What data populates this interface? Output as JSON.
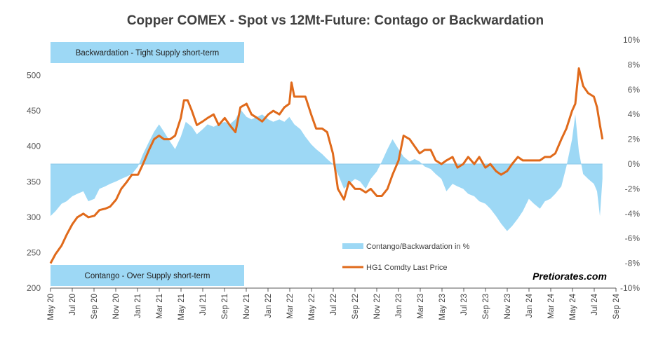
{
  "colors": {
    "area": "#9DD8F5",
    "line": "#E06A1B",
    "box": "#9DD8F5",
    "axis": "#595959",
    "zero_line": "#8CC8E8"
  },
  "annotations": {
    "backwardation": "Backwardation - Tight Supply short-term",
    "contango": "Contango - Over Supply short-term",
    "brand": "Pretiorates.com"
  },
  "chart_data": {
    "type": "line",
    "title": "Copper COMEX - Spot vs 12Mt-Future: Contago or Backwardation",
    "legend_placement": "bottom-center",
    "grid": false,
    "x_ticks": [
      "May 20",
      "Jul 20",
      "Sep 20",
      "Nov 20",
      "Jan 21",
      "Mar 21",
      "May 21",
      "Jul 21",
      "Sep 21",
      "Nov 21",
      "Jan 22",
      "Mar 22",
      "May 22",
      "Jul 22",
      "Sep 22",
      "Nov 22",
      "Jan 23",
      "Mar 23",
      "May 23",
      "Jul 23",
      "Sep 23",
      "Nov 23",
      "Jan 24",
      "Mar 24",
      "May 24",
      "Jul 24",
      "Sep 24"
    ],
    "y_left": {
      "ylim": [
        200,
        550
      ],
      "ticks": [
        "200",
        "250",
        "300",
        "350",
        "400",
        "450",
        "500"
      ]
    },
    "y_right": {
      "ylim": [
        -10,
        10
      ],
      "ticks": [
        "-10%",
        "-8%",
        "-6%",
        "-4%",
        "-2%",
        "0%",
        "2%",
        "4%",
        "6%",
        "8%",
        "10%"
      ]
    },
    "series": [
      {
        "name": "Contango/Backwardation in %",
        "type": "area",
        "axis": "right",
        "x": [
          "2020-05-01",
          "2020-05-15",
          "2020-06-01",
          "2020-06-15",
          "2020-07-01",
          "2020-07-15",
          "2020-08-01",
          "2020-08-15",
          "2020-09-01",
          "2020-09-15",
          "2020-10-01",
          "2020-10-15",
          "2020-11-01",
          "2020-11-15",
          "2020-12-01",
          "2020-12-15",
          "2021-01-01",
          "2021-01-15",
          "2021-02-01",
          "2021-02-15",
          "2021-03-01",
          "2021-03-15",
          "2021-04-01",
          "2021-04-15",
          "2021-05-01",
          "2021-05-15",
          "2021-06-01",
          "2021-06-15",
          "2021-07-01",
          "2021-07-15",
          "2021-08-01",
          "2021-08-15",
          "2021-09-01",
          "2021-09-15",
          "2021-10-01",
          "2021-10-15",
          "2021-11-01",
          "2021-11-15",
          "2021-12-01",
          "2021-12-15",
          "2022-01-01",
          "2022-01-15",
          "2022-02-01",
          "2022-02-15",
          "2022-03-01",
          "2022-03-15",
          "2022-04-01",
          "2022-04-15",
          "2022-05-01",
          "2022-05-15",
          "2022-06-01",
          "2022-06-15",
          "2022-07-01",
          "2022-07-15",
          "2022-08-01",
          "2022-08-15",
          "2022-09-01",
          "2022-09-15",
          "2022-10-01",
          "2022-10-15",
          "2022-11-01",
          "2022-11-15",
          "2022-12-01",
          "2022-12-15",
          "2023-01-01",
          "2023-01-15",
          "2023-02-01",
          "2023-02-15",
          "2023-03-01",
          "2023-03-15",
          "2023-04-01",
          "2023-04-15",
          "2023-05-01",
          "2023-05-15",
          "2023-06-01",
          "2023-06-15",
          "2023-07-01",
          "2023-07-15",
          "2023-08-01",
          "2023-08-15",
          "2023-09-01",
          "2023-09-15",
          "2023-10-01",
          "2023-10-15",
          "2023-11-01",
          "2023-11-15",
          "2023-12-01",
          "2023-12-15",
          "2024-01-01",
          "2024-01-15",
          "2024-02-01",
          "2024-02-15",
          "2024-03-01",
          "2024-03-15",
          "2024-04-01",
          "2024-04-15",
          "2024-05-01",
          "2024-05-10",
          "2024-05-20",
          "2024-06-01",
          "2024-06-15",
          "2024-07-01",
          "2024-07-10",
          "2024-07-18",
          "2024-07-25"
        ],
        "values": [
          -4.2,
          -3.8,
          -3.2,
          -3.0,
          -2.6,
          -2.4,
          -2.2,
          -3.0,
          -2.8,
          -2.0,
          -1.8,
          -1.6,
          -1.4,
          -1.2,
          -1.0,
          -0.8,
          -0.2,
          0.8,
          1.8,
          2.6,
          3.2,
          2.6,
          1.8,
          1.2,
          2.2,
          3.4,
          3.0,
          2.4,
          2.8,
          3.2,
          3.0,
          3.2,
          3.4,
          3.2,
          3.6,
          4.4,
          3.8,
          3.6,
          3.8,
          4.0,
          3.6,
          3.4,
          3.6,
          3.4,
          3.8,
          3.2,
          2.8,
          2.2,
          1.6,
          1.2,
          0.8,
          0.4,
          0.0,
          -0.8,
          -2.0,
          -1.6,
          -1.2,
          -1.4,
          -2.0,
          -1.2,
          -0.6,
          0.2,
          1.2,
          2.0,
          1.2,
          0.6,
          0.2,
          0.4,
          0.2,
          -0.2,
          -0.4,
          -0.8,
          -1.2,
          -2.2,
          -1.6,
          -1.8,
          -2.0,
          -2.4,
          -2.6,
          -3.0,
          -3.2,
          -3.6,
          -4.2,
          -4.8,
          -5.4,
          -5.0,
          -4.4,
          -3.8,
          -2.8,
          -3.2,
          -3.6,
          -3.0,
          -2.8,
          -2.4,
          -1.8,
          -0.2,
          2.0,
          4.0,
          1.0,
          -0.8,
          -1.2,
          -1.6,
          -2.2,
          -4.2,
          -1.2
        ]
      },
      {
        "name": "HG1 Comdty Last Price",
        "type": "line",
        "axis": "left",
        "x": [
          "2020-05-01",
          "2020-05-15",
          "2020-06-01",
          "2020-06-15",
          "2020-07-01",
          "2020-07-15",
          "2020-08-01",
          "2020-08-15",
          "2020-09-01",
          "2020-09-15",
          "2020-10-01",
          "2020-10-15",
          "2020-11-01",
          "2020-11-15",
          "2020-12-01",
          "2020-12-15",
          "2021-01-01",
          "2021-01-15",
          "2021-02-01",
          "2021-02-15",
          "2021-03-01",
          "2021-03-15",
          "2021-04-01",
          "2021-04-15",
          "2021-05-01",
          "2021-05-10",
          "2021-05-20",
          "2021-06-01",
          "2021-06-15",
          "2021-07-01",
          "2021-07-15",
          "2021-08-01",
          "2021-08-15",
          "2021-09-01",
          "2021-09-15",
          "2021-10-01",
          "2021-10-15",
          "2021-11-01",
          "2021-11-15",
          "2021-12-01",
          "2021-12-15",
          "2022-01-01",
          "2022-01-15",
          "2022-02-01",
          "2022-02-15",
          "2022-03-01",
          "2022-03-07",
          "2022-03-15",
          "2022-04-01",
          "2022-04-15",
          "2022-05-01",
          "2022-05-15",
          "2022-06-01",
          "2022-06-15",
          "2022-07-01",
          "2022-07-15",
          "2022-08-01",
          "2022-08-15",
          "2022-09-01",
          "2022-09-15",
          "2022-10-01",
          "2022-10-15",
          "2022-11-01",
          "2022-11-15",
          "2022-12-01",
          "2022-12-15",
          "2023-01-01",
          "2023-01-15",
          "2023-02-01",
          "2023-02-15",
          "2023-03-01",
          "2023-03-15",
          "2023-04-01",
          "2023-04-15",
          "2023-05-01",
          "2023-05-15",
          "2023-06-01",
          "2023-06-15",
          "2023-07-01",
          "2023-07-15",
          "2023-08-01",
          "2023-08-15",
          "2023-09-01",
          "2023-09-15",
          "2023-10-01",
          "2023-10-15",
          "2023-11-01",
          "2023-11-15",
          "2023-12-01",
          "2023-12-15",
          "2024-01-01",
          "2024-01-15",
          "2024-02-01",
          "2024-02-15",
          "2024-03-01",
          "2024-03-15",
          "2024-04-01",
          "2024-04-15",
          "2024-05-01",
          "2024-05-10",
          "2024-05-20",
          "2024-06-01",
          "2024-06-15",
          "2024-07-01",
          "2024-07-10",
          "2024-07-18",
          "2024-07-25"
        ],
        "values": [
          235,
          248,
          260,
          275,
          290,
          300,
          305,
          300,
          302,
          310,
          312,
          315,
          325,
          340,
          350,
          360,
          360,
          375,
          395,
          410,
          415,
          410,
          410,
          415,
          440,
          465,
          465,
          450,
          430,
          435,
          440,
          445,
          430,
          440,
          430,
          420,
          455,
          460,
          445,
          440,
          435,
          445,
          450,
          445,
          455,
          460,
          490,
          470,
          470,
          470,
          445,
          425,
          425,
          420,
          390,
          340,
          325,
          350,
          340,
          340,
          335,
          340,
          330,
          330,
          340,
          360,
          380,
          415,
          410,
          400,
          390,
          395,
          395,
          380,
          375,
          380,
          385,
          370,
          375,
          385,
          375,
          385,
          370,
          375,
          365,
          360,
          365,
          375,
          385,
          380,
          380,
          380,
          380,
          385,
          385,
          390,
          410,
          425,
          450,
          460,
          510,
          485,
          475,
          470,
          455,
          430,
          410
        ]
      }
    ]
  }
}
